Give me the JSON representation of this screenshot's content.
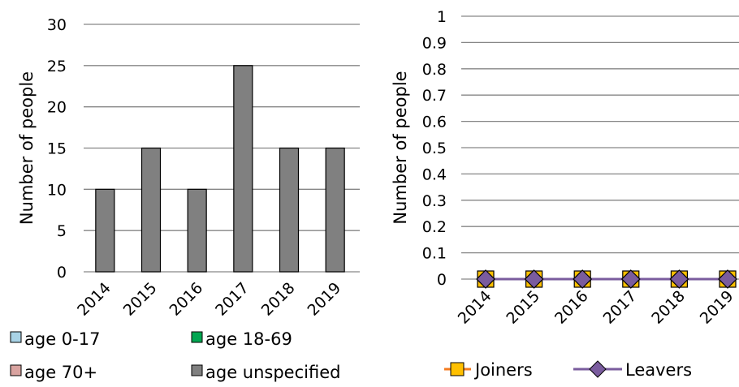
{
  "chart_data": [
    {
      "type": "bar",
      "categories": [
        "2014",
        "2015",
        "2016",
        "2017",
        "2018",
        "2019"
      ],
      "series": [
        {
          "name": "age 0-17",
          "values": [
            0,
            0,
            0,
            0,
            0,
            0
          ],
          "color": "#a9d3e6"
        },
        {
          "name": "age 18-69",
          "values": [
            0,
            0,
            0,
            0,
            0,
            0
          ],
          "color": "#00a651"
        },
        {
          "name": "age 70+",
          "values": [
            0,
            0,
            0,
            0,
            0,
            0
          ],
          "color": "#d9a3a0"
        },
        {
          "name": "age unspecified",
          "values": [
            10,
            15,
            10,
            25,
            15,
            15
          ],
          "color": "#808080"
        }
      ],
      "title": "",
      "xlabel": "",
      "ylabel": "Number of people",
      "ylim": [
        0,
        30
      ],
      "yticks": [
        "0",
        "5",
        "10",
        "15",
        "20",
        "25",
        "30"
      ],
      "grid": true,
      "legend_position": "bottom"
    },
    {
      "type": "line",
      "categories": [
        "2014",
        "2015",
        "2016",
        "2017",
        "2018",
        "2019"
      ],
      "series": [
        {
          "name": "Joiners",
          "values": [
            0,
            0,
            0,
            0,
            0,
            0
          ],
          "color": "#f47b20",
          "marker_color": "#ffc000",
          "marker": "square"
        },
        {
          "name": "Leavers",
          "values": [
            0,
            0,
            0,
            0,
            0,
            0
          ],
          "color": "#7a5c9e",
          "marker_color": "#7a5c9e",
          "marker": "diamond"
        }
      ],
      "title": "",
      "xlabel": "",
      "ylabel": "Number of people",
      "ylim": [
        0,
        1
      ],
      "yticks": [
        "0",
        "0.1",
        "0.2",
        "0.3",
        "0.4",
        "0.5",
        "0.6",
        "0.7",
        "0.8",
        "0.9",
        "1"
      ],
      "grid": true,
      "legend_position": "bottom"
    }
  ]
}
